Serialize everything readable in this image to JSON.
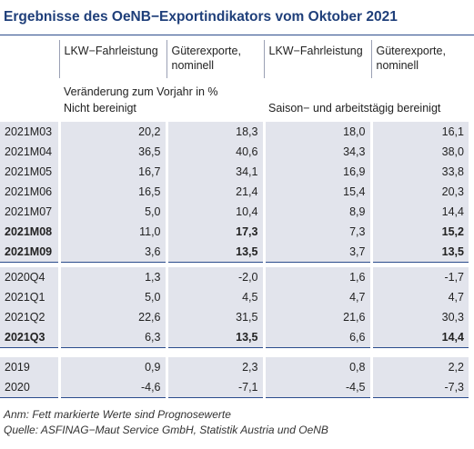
{
  "title": "Ergebnisse des OeNB−Exportindikators vom Oktober 2021",
  "columns": [
    "LKW−Fahrleistung",
    "Güterexporte, nominell",
    "LKW−Fahrleistung",
    "Güterexporte, nominell"
  ],
  "subheaders": {
    "left": [
      "Veränderung zum Vorjahr in %",
      "Nicht bereinigt"
    ],
    "right": "Saison− und arbeitstägig bereinigt"
  },
  "groups": [
    [
      [
        "2021M03",
        "20,2",
        "18,3",
        "18,0",
        "16,1"
      ],
      [
        "2021M04",
        "36,5",
        "40,6",
        "34,3",
        "38,0"
      ],
      [
        "2021M05",
        "16,7",
        "34,1",
        "16,9",
        "33,8"
      ],
      [
        "2021M06",
        "16,5",
        "21,4",
        "15,4",
        "20,3"
      ],
      [
        "2021M07",
        "5,0",
        "10,4",
        "8,9",
        "14,4"
      ],
      [
        "2021M08",
        "11,0",
        "17,3",
        "7,3",
        "15,2"
      ],
      [
        "2021M09",
        "3,6",
        "13,5",
        "3,7",
        "13,5"
      ]
    ],
    [
      [
        "2020Q4",
        "1,3",
        "-2,0",
        "1,6",
        "-1,7"
      ],
      [
        "2021Q1",
        "5,0",
        "4,5",
        "4,7",
        "4,7"
      ],
      [
        "2021Q2",
        "22,6",
        "31,5",
        "21,6",
        "30,3"
      ],
      [
        "2021Q3",
        "6,3",
        "13,5",
        "6,6",
        "14,4"
      ]
    ],
    [
      [
        "2019",
        "0,9",
        "2,3",
        "0,8",
        "2,2"
      ],
      [
        "2020",
        "-4,6",
        "-7,1",
        "-4,5",
        "-7,3"
      ]
    ]
  ],
  "notes": [
    "Anm: Fett markierte Werte sind Prognosewerte",
    "Quelle: ASFINAG−Maut Service GmbH, Statistik Austria und OeNB"
  ]
}
